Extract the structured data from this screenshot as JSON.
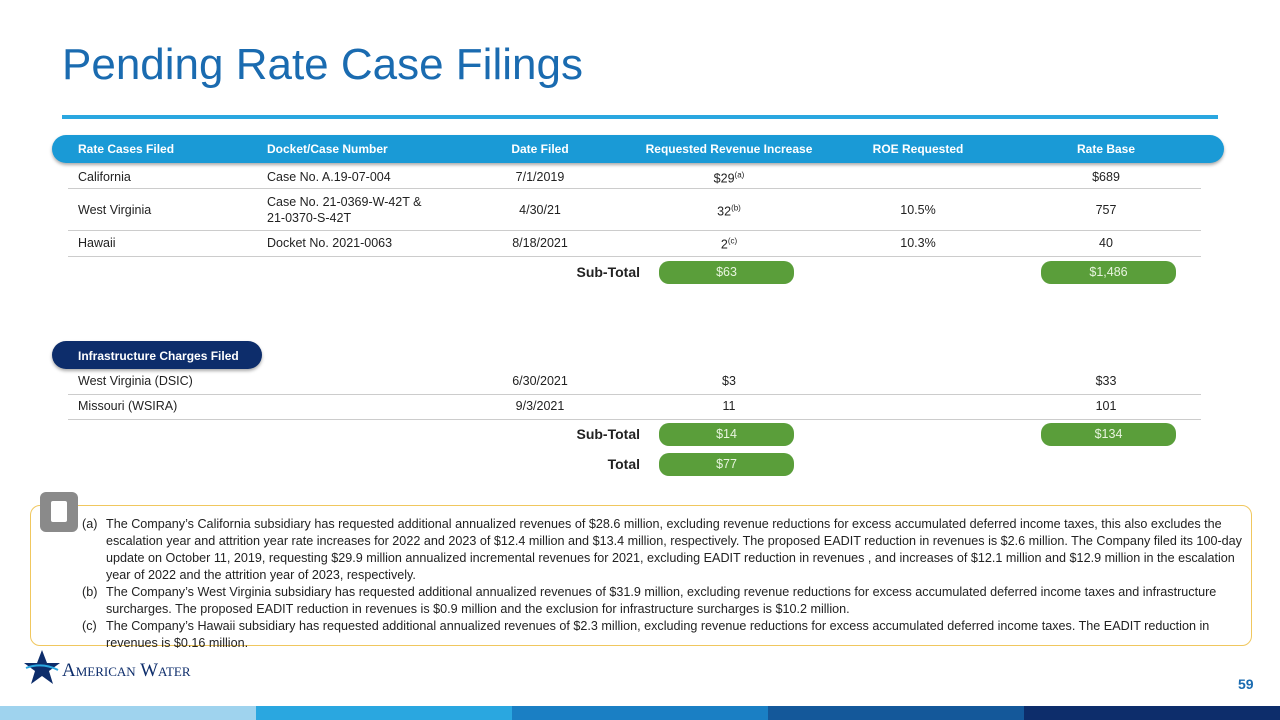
{
  "title": "Pending Rate Case Filings",
  "rate_cases": {
    "header": [
      "Rate Cases Filed",
      "Docket/Case Number",
      "Date Filed",
      "Requested Revenue Increase",
      "ROE Requested",
      "Rate Base"
    ],
    "rows": [
      [
        "California",
        "Case No. A.19-07-004",
        "7/1/2019",
        {
          "value": "$29",
          "note": "(a)"
        },
        null,
        "$689"
      ],
      [
        "West Virginia",
        "Case No. 21-0369-W-42T & 21-0370-S-42T",
        "4/30/21",
        {
          "value": "32",
          "note": "(b)"
        },
        "10.5%",
        "757"
      ],
      [
        "Hawaii",
        "Docket No. 2021-0063",
        "8/18/2021",
        {
          "value": "2",
          "note": "(c)"
        },
        "10.3%",
        "40"
      ]
    ],
    "subtotal": {
      "label": "Sub-Total",
      "revenue": "$63",
      "rate_base": "$1,486"
    }
  },
  "infrastructure": {
    "header": "Infrastructure Charges Filed",
    "rows": [
      [
        "West Virginia (DSIC)",
        "6/30/2021",
        "$3",
        "$33"
      ],
      [
        "Missouri (WSIRA)",
        "9/3/2021",
        "11",
        "101"
      ]
    ],
    "subtotal": {
      "label": "Sub-Total",
      "revenue": "$14",
      "rate_base": "$134"
    }
  },
  "total": {
    "label": "Total",
    "revenue": "$77"
  },
  "footnotes": [
    {
      "marker": "(a)",
      "text": "The Company’s California subsidiary has requested additional annualized revenues of $28.6 million, excluding revenue reductions for excess accumulated deferred income taxes, this also excludes the escalation year and attrition year rate increases for 2022 and 2023 of $12.4 million and $13.4 million, respectively. The proposed EADIT reduction in revenues is $2.6 million. The Company filed its 100-day update on October 11, 2019, requesting $29.9 million annualized incremental revenues for 2021, excluding EADIT reduction in revenues , and increases of $12.1 million and $12.9 million in the escalation year of 2022 and the attrition year of 2023, respectively."
    },
    {
      "marker": "(b)",
      "text": "The Company’s West Virginia subsidiary has requested additional annualized revenues of $31.9 million, excluding revenue reductions for excess accumulated deferred income taxes and infrastructure surcharges. The proposed EADIT reduction in revenues is $0.9 million and the exclusion for infrastructure surcharges is $10.2 million."
    },
    {
      "marker": "(c)",
      "text": "The Company’s Hawaii subsidiary has requested additional annualized revenues of $2.3 million, excluding revenue reductions for excess accumulated deferred income taxes. The EADIT reduction  in revenues is $0.16 million."
    }
  ],
  "logo": "American Water",
  "page_number": "59"
}
